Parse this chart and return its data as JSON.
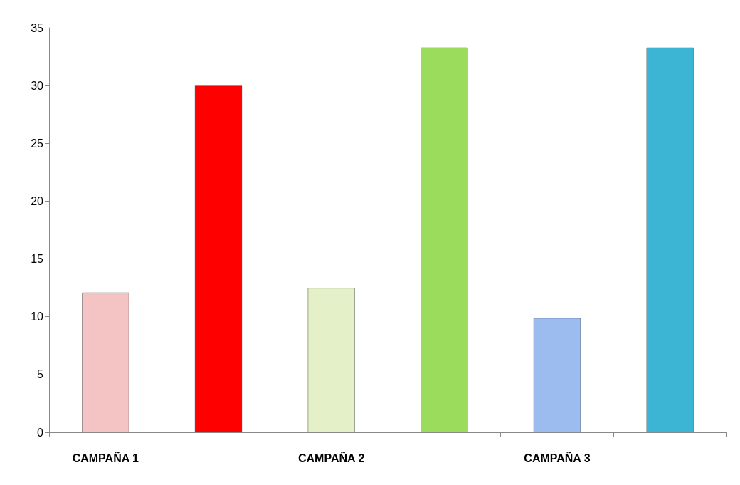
{
  "chart_data": {
    "type": "bar",
    "categories": [
      "CAMPAÑA 1",
      null,
      "CAMPAÑA 2",
      null,
      "CAMPAÑA 3",
      null
    ],
    "values": [
      12.1,
      30,
      12.5,
      33.3,
      9.9,
      33.3
    ],
    "colors": [
      "#f4c4c4",
      "#ff0000",
      "#e4f0c8",
      "#9cdc5c",
      "#9cbcf0",
      "#3cb4d4"
    ],
    "ylim": [
      0,
      35
    ],
    "yticks": [
      0,
      5,
      10,
      15,
      20,
      25,
      30,
      35
    ],
    "grid": false
  }
}
